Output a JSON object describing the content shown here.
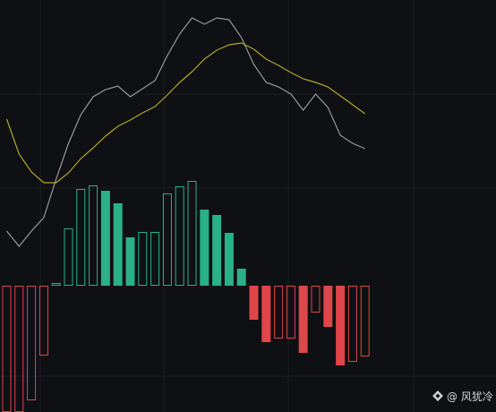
{
  "chart_data": {
    "type": "macd",
    "categories": [
      null,
      null,
      null,
      null,
      null,
      null,
      null,
      null,
      null,
      null,
      null,
      null,
      null,
      null,
      null,
      null,
      null,
      null,
      null,
      null,
      null,
      null,
      null,
      null,
      null,
      null,
      null,
      null,
      null,
      null
    ],
    "ylim": [
      -141,
      319
    ],
    "series": [
      {
        "color": "#9a9a9e",
        "values": [
          61,
          44,
          61,
          76,
          119,
          159,
          191,
          211,
          219,
          223,
          211,
          220,
          229,
          257,
          281,
          299,
          292,
          299,
          297,
          277,
          247,
          227,
          222,
          214,
          196,
          214,
          199,
          168,
          159,
          153
        ]
      },
      {
        "color": "#b5a52a",
        "values": [
          186,
          147,
          127,
          115,
          115,
          126,
          142,
          154,
          167,
          178,
          185,
          193,
          200,
          213,
          227,
          239,
          253,
          263,
          269,
          271,
          264,
          253,
          246,
          238,
          231,
          227,
          222,
          212,
          202,
          192
        ]
      }
    ],
    "histogram": {
      "values": [
        -141,
        -141,
        -128,
        -78,
        3,
        64,
        108,
        112,
        106,
        92,
        54,
        60,
        60,
        103,
        111,
        117,
        85,
        79,
        59,
        19,
        -38,
        -63,
        -59,
        -59,
        -75,
        -30,
        -46,
        -89,
        -85,
        -79
      ],
      "filled": [
        false,
        false,
        false,
        false,
        false,
        false,
        false,
        false,
        true,
        true,
        true,
        false,
        false,
        false,
        false,
        false,
        true,
        true,
        true,
        true,
        true,
        true,
        false,
        false,
        true,
        false,
        true,
        true,
        false,
        false
      ],
      "up_color": "#2bb088",
      "down_color": "#e0454a"
    },
    "watermark": "@ 风犹冷"
  }
}
